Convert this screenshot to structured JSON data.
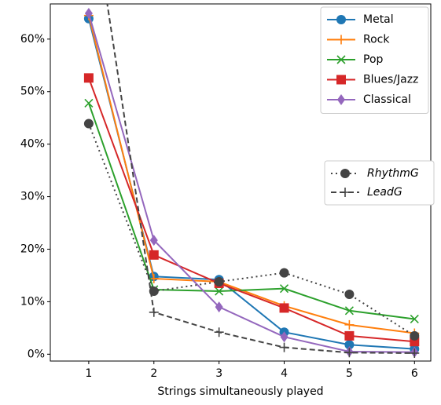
{
  "chart_data": {
    "type": "line",
    "xlabel": "Strings simultaneously played",
    "x": [
      1,
      2,
      3,
      4,
      5,
      6
    ],
    "xlim": [
      0.41,
      6.25
    ],
    "xticks": [
      1,
      2,
      3,
      4,
      5,
      6
    ],
    "ylim": [
      -1.3,
      66.7
    ],
    "yticks": [
      {
        "value": 0,
        "label": "0%"
      },
      {
        "value": 10,
        "label": "10%"
      },
      {
        "value": 20,
        "label": "20%"
      },
      {
        "value": 30,
        "label": "30%"
      },
      {
        "value": 40,
        "label": "40%"
      },
      {
        "value": 50,
        "label": "50%"
      },
      {
        "value": 60,
        "label": "60%"
      }
    ],
    "series": [
      {
        "name": "Metal",
        "color": "#1f77b4",
        "marker": "circle",
        "linestyle": "solid",
        "legend": "upper right",
        "values": [
          63.9,
          14.8,
          14.2,
          4.2,
          1.8,
          1.0
        ]
      },
      {
        "name": "Rock",
        "color": "#ff7f0e",
        "marker": "plus",
        "linestyle": "solid",
        "legend": "upper right",
        "values": [
          64.5,
          14.4,
          13.8,
          9.2,
          5.6,
          4.0
        ]
      },
      {
        "name": "Pop",
        "color": "#2ca02c",
        "marker": "x",
        "linestyle": "solid",
        "legend": "upper right",
        "values": [
          47.8,
          12.3,
          12.0,
          12.5,
          8.3,
          6.7
        ]
      },
      {
        "name": "Blues/Jazz",
        "color": "#d62728",
        "marker": "square",
        "linestyle": "solid",
        "legend": "upper right",
        "values": [
          52.6,
          18.9,
          13.5,
          8.8,
          3.5,
          2.4
        ]
      },
      {
        "name": "Classical",
        "color": "#9467bd",
        "marker": "diamond",
        "linestyle": "solid",
        "legend": "upper right",
        "values": [
          64.9,
          21.7,
          9.0,
          3.3,
          0.5,
          0.4
        ]
      },
      {
        "name": "RhythmG",
        "color": "#444444",
        "marker": "circle",
        "linestyle": "dotted",
        "legend": "center right",
        "label_style": "italic",
        "values": [
          43.9,
          12.0,
          13.8,
          15.5,
          11.4,
          3.5
        ]
      },
      {
        "name": "LeadG",
        "color": "#444444",
        "marker": "plus",
        "linestyle": "dashed",
        "legend": "center right",
        "label_style": "italic",
        "values": [
          90,
          8.0,
          4.2,
          1.3,
          0.3,
          0.2
        ]
      }
    ]
  }
}
